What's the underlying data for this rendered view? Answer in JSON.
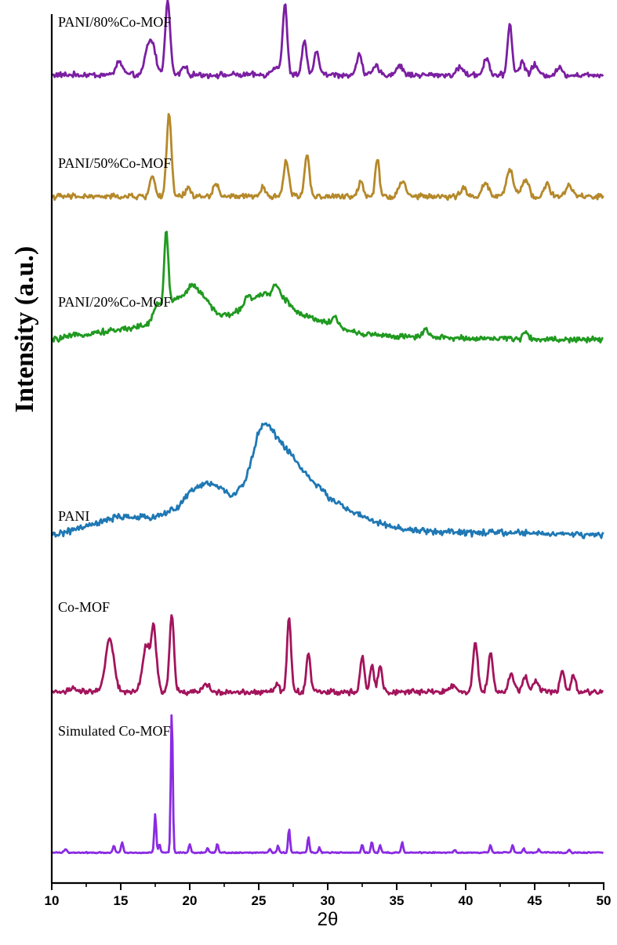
{
  "chart_data": {
    "type": "line",
    "xlabel": "2θ",
    "ylabel": "Intensity (a.u.)",
    "xlim": [
      10,
      50
    ],
    "x_ticks": [
      10,
      15,
      20,
      25,
      30,
      35,
      40,
      45,
      50
    ],
    "x_tick_labels": [
      "10",
      "15",
      "20",
      "25",
      "30",
      "35",
      "40",
      "45",
      "50"
    ],
    "grid": false,
    "y_ticks_shown": false,
    "series": [
      {
        "name": "PANI/80%Co-MOF",
        "color": "#7b1fa2",
        "baseline": 0.93,
        "noise": 0.004,
        "background": [
          [
            10,
            0.0
          ],
          [
            50,
            0.0
          ]
        ],
        "peaks": [
          [
            14.9,
            0.015,
            0.25
          ],
          [
            16.9,
            0.022,
            0.2
          ],
          [
            17.3,
            0.035,
            0.25
          ],
          [
            18.4,
            0.085,
            0.18
          ],
          [
            19.6,
            0.01,
            0.2
          ],
          [
            26.3,
            0.01,
            0.3
          ],
          [
            26.9,
            0.08,
            0.16
          ],
          [
            28.3,
            0.04,
            0.16
          ],
          [
            29.2,
            0.025,
            0.2
          ],
          [
            32.3,
            0.025,
            0.18
          ],
          [
            33.5,
            0.01,
            0.2
          ],
          [
            35.2,
            0.01,
            0.25
          ],
          [
            39.6,
            0.01,
            0.2
          ],
          [
            41.5,
            0.02,
            0.2
          ],
          [
            43.2,
            0.06,
            0.16
          ],
          [
            44.1,
            0.015,
            0.2
          ],
          [
            45.0,
            0.012,
            0.2
          ],
          [
            46.8,
            0.008,
            0.2
          ]
        ]
      },
      {
        "name": "PANI/50%Co-MOF",
        "color": "#b5892a",
        "baseline": 0.79,
        "noise": 0.004,
        "background": [
          [
            10,
            0.0
          ],
          [
            50,
            0.0
          ]
        ],
        "peaks": [
          [
            17.3,
            0.025,
            0.18
          ],
          [
            18.5,
            0.095,
            0.17
          ],
          [
            19.9,
            0.01,
            0.2
          ],
          [
            21.9,
            0.015,
            0.2
          ],
          [
            25.3,
            0.01,
            0.2
          ],
          [
            27.0,
            0.04,
            0.2
          ],
          [
            28.5,
            0.05,
            0.17
          ],
          [
            32.4,
            0.018,
            0.18
          ],
          [
            33.6,
            0.045,
            0.15
          ],
          [
            35.4,
            0.018,
            0.25
          ],
          [
            39.8,
            0.01,
            0.2
          ],
          [
            41.4,
            0.015,
            0.25
          ],
          [
            43.2,
            0.03,
            0.25
          ],
          [
            44.3,
            0.02,
            0.25
          ],
          [
            45.9,
            0.015,
            0.2
          ],
          [
            47.5,
            0.012,
            0.25
          ]
        ]
      },
      {
        "name": "PANI/20%Co-MOF",
        "color": "#209a20",
        "baseline": 0.625,
        "noise": 0.004,
        "background": [
          [
            10,
            0.0
          ],
          [
            12,
            0.006
          ],
          [
            15,
            0.012
          ],
          [
            17,
            0.018
          ],
          [
            18,
            0.04
          ],
          [
            20,
            0.055
          ],
          [
            21,
            0.05
          ],
          [
            22,
            0.03
          ],
          [
            23,
            0.028
          ],
          [
            24,
            0.04
          ],
          [
            25,
            0.05
          ],
          [
            26,
            0.055
          ],
          [
            27,
            0.045
          ],
          [
            28,
            0.03
          ],
          [
            30,
            0.02
          ],
          [
            32,
            0.008
          ],
          [
            35,
            0.004
          ],
          [
            40,
            0.002
          ],
          [
            50,
            0.0
          ]
        ],
        "peaks": [
          [
            17.6,
            0.01,
            0.2
          ],
          [
            18.3,
            0.085,
            0.14
          ],
          [
            20.3,
            0.01,
            0.3
          ],
          [
            24.2,
            0.01,
            0.2
          ],
          [
            26.3,
            0.012,
            0.2
          ],
          [
            30.5,
            0.01,
            0.2
          ],
          [
            37.1,
            0.008,
            0.2
          ],
          [
            44.3,
            0.01,
            0.15
          ]
        ]
      },
      {
        "name": "PANI",
        "color": "#1f78b4",
        "baseline": 0.4,
        "noise": 0.0045,
        "background": [
          [
            10,
            0.0
          ],
          [
            12,
            0.008
          ],
          [
            15,
            0.022
          ],
          [
            17,
            0.02
          ],
          [
            19,
            0.03
          ],
          [
            20,
            0.05
          ],
          [
            21,
            0.06
          ],
          [
            22,
            0.058
          ],
          [
            23,
            0.045
          ],
          [
            24,
            0.06
          ],
          [
            25,
            0.12
          ],
          [
            25.5,
            0.13
          ],
          [
            26.5,
            0.11
          ],
          [
            27.5,
            0.09
          ],
          [
            28.5,
            0.07
          ],
          [
            30,
            0.045
          ],
          [
            32,
            0.025
          ],
          [
            34,
            0.012
          ],
          [
            36,
            0.006
          ],
          [
            40,
            0.003
          ],
          [
            45,
            0.003
          ],
          [
            50,
            0.0
          ]
        ],
        "peaks": []
      },
      {
        "name": "Co-MOF",
        "color": "#a3145c",
        "baseline": 0.22,
        "noise": 0.004,
        "background": [
          [
            10,
            0.0
          ],
          [
            50,
            0.0
          ]
        ],
        "peaks": [
          [
            11.5,
            0.005,
            0.2
          ],
          [
            14.2,
            0.063,
            0.3
          ],
          [
            16.9,
            0.055,
            0.3
          ],
          [
            17.4,
            0.065,
            0.15
          ],
          [
            17.7,
            0.015,
            0.1
          ],
          [
            18.7,
            0.09,
            0.16
          ],
          [
            21.2,
            0.01,
            0.2
          ],
          [
            26.3,
            0.01,
            0.15
          ],
          [
            27.2,
            0.085,
            0.15
          ],
          [
            28.6,
            0.045,
            0.15
          ],
          [
            32.5,
            0.04,
            0.16
          ],
          [
            33.2,
            0.03,
            0.15
          ],
          [
            33.8,
            0.03,
            0.15
          ],
          [
            39.1,
            0.008,
            0.2
          ],
          [
            40.7,
            0.055,
            0.17
          ],
          [
            41.8,
            0.045,
            0.17
          ],
          [
            43.3,
            0.02,
            0.2
          ],
          [
            44.3,
            0.018,
            0.2
          ],
          [
            45.1,
            0.012,
            0.2
          ],
          [
            47.0,
            0.025,
            0.15
          ],
          [
            47.8,
            0.02,
            0.15
          ]
        ]
      },
      {
        "name": "Simulated Co-MOF",
        "color": "#8a2be2",
        "baseline": 0.035,
        "noise": 0.0008,
        "background": [
          [
            10,
            0.0
          ],
          [
            50,
            0.0
          ]
        ],
        "peaks": [
          [
            11.0,
            0.004,
            0.1
          ],
          [
            14.5,
            0.008,
            0.08
          ],
          [
            15.1,
            0.012,
            0.08
          ],
          [
            17.5,
            0.045,
            0.07
          ],
          [
            17.8,
            0.01,
            0.07
          ],
          [
            18.7,
            0.165,
            0.07
          ],
          [
            20.0,
            0.01,
            0.07
          ],
          [
            21.3,
            0.006,
            0.07
          ],
          [
            22.0,
            0.01,
            0.07
          ],
          [
            25.8,
            0.004,
            0.07
          ],
          [
            26.4,
            0.008,
            0.07
          ],
          [
            27.2,
            0.028,
            0.07
          ],
          [
            28.6,
            0.018,
            0.07
          ],
          [
            29.4,
            0.006,
            0.07
          ],
          [
            32.5,
            0.01,
            0.07
          ],
          [
            33.2,
            0.013,
            0.07
          ],
          [
            33.8,
            0.008,
            0.07
          ],
          [
            35.4,
            0.012,
            0.07
          ],
          [
            39.2,
            0.003,
            0.07
          ],
          [
            41.8,
            0.009,
            0.07
          ],
          [
            43.4,
            0.009,
            0.07
          ],
          [
            44.2,
            0.005,
            0.07
          ],
          [
            45.3,
            0.004,
            0.07
          ],
          [
            47.5,
            0.003,
            0.07
          ]
        ]
      }
    ]
  }
}
